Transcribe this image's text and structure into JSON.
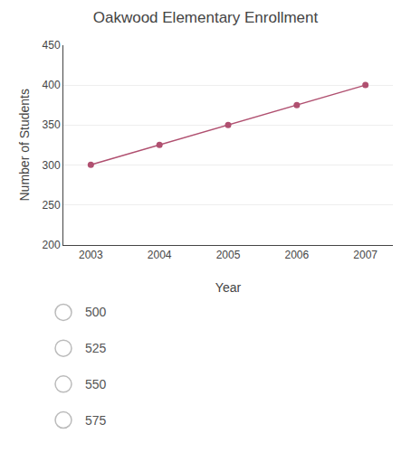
{
  "chart_data": {
    "type": "line",
    "title": "Oakwood Elementary Enrollment",
    "x_label": "Year",
    "y_label": "Number of Students",
    "x": [
      2003,
      2004,
      2005,
      2006,
      2007
    ],
    "values": [
      300,
      325,
      350,
      375,
      400
    ],
    "color": "#b05070",
    "marker": "circle",
    "xlim": [
      2002.6,
      2007.4
    ],
    "xticks": [
      2003,
      2004,
      2005,
      2006,
      2007
    ],
    "ylim": [
      200,
      450
    ],
    "yticks": [
      200,
      250,
      300,
      350,
      400,
      450
    ],
    "grid": "y",
    "annotations": [
      "500",
      "525",
      "550",
      "575"
    ]
  }
}
